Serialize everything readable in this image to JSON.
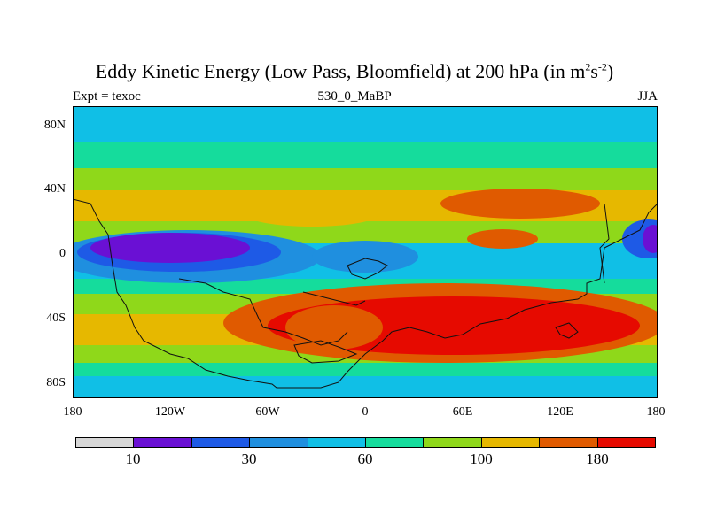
{
  "title": {
    "main": "Eddy Kinetic Energy (Low Pass, Bloomfield) at 200 hPa (in m",
    "sup1": "2",
    "mid": "s",
    "sup2": "-2",
    "end": ")"
  },
  "meta": {
    "left": "Expt = texoc",
    "center": "530_0_MaBP",
    "right": "JJA"
  },
  "axes": {
    "lat_labels": [
      "80N",
      "40N",
      "0",
      "40S",
      "80S"
    ],
    "lon_labels": [
      "180",
      "120W",
      "60W",
      "0",
      "60E",
      "120E",
      "180"
    ]
  },
  "colorbar": {
    "colors": [
      "#d7d7d7",
      "#6a10d4",
      "#1e5ae6",
      "#1f8fdf",
      "#10bfe6",
      "#15dc9c",
      "#8fd81a",
      "#e6b800",
      "#e05a00",
      "#e60a00"
    ],
    "labels": [
      "10",
      "30",
      "60",
      "100",
      "180"
    ]
  }
}
